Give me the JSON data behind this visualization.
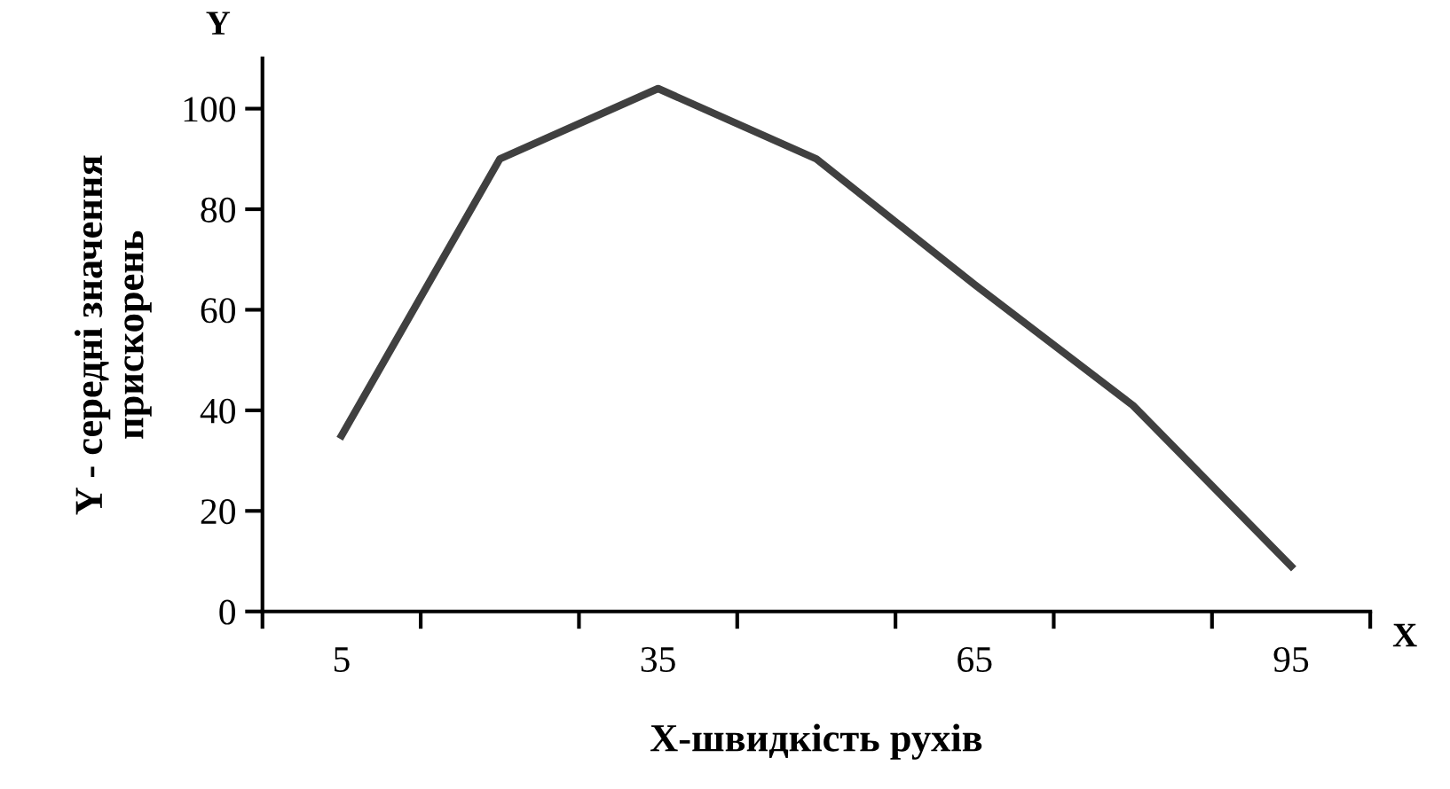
{
  "chart_data": {
    "type": "line",
    "xlabel": "X-швидкість рухів",
    "ylabel": "Y - середні значення\nприскорень",
    "categories": [
      "5",
      null,
      "35",
      null,
      "65",
      null,
      "95"
    ],
    "series": [
      {
        "color": "#404040",
        "values": [
          35,
          90,
          104,
          90,
          65,
          41,
          9
        ]
      }
    ],
    "ylim": [
      0,
      110
    ],
    "yticks": [
      0,
      20,
      40,
      60,
      80,
      100
    ],
    "grid": false,
    "legend": false,
    "marker": "none",
    "line_style": "solid",
    "annotations": [
      "Y",
      "X"
    ]
  }
}
